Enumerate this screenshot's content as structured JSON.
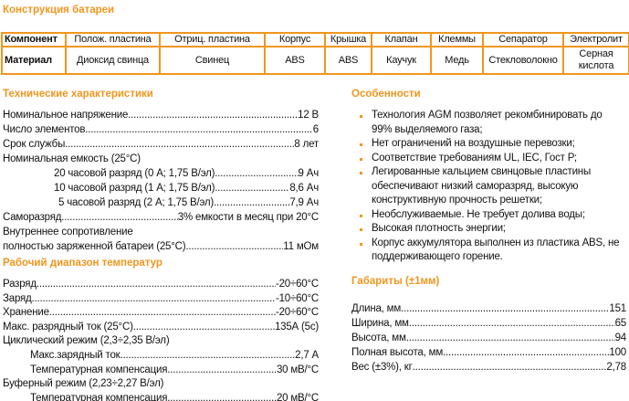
{
  "construction": {
    "title": "Конструкция батареи",
    "header": [
      "Компонент",
      "Полож. пластина",
      "Отриц. пластина",
      "Корпус",
      "Крышка",
      "Клапан",
      "Клеммы",
      "Сепаратор",
      "Электролит"
    ],
    "material": [
      "Материал",
      "Диоксид свинца",
      "Свинец",
      "ABS",
      "ABS",
      "Каучук",
      "Медь",
      "Стекловолокно",
      "Серная кислота"
    ]
  },
  "tech": {
    "title": "Технические характеристики",
    "rows": [
      {
        "label": "Номинальное напряжение",
        "value": "12 В"
      },
      {
        "label": "Число элементов",
        "value": "6"
      },
      {
        "label": "Срок службы",
        "value": "8 лет"
      },
      {
        "label": "Номинальная емкость (25°C)"
      },
      {
        "label": "20 часовой разряд  (0 А; 1,75 В/эл)",
        "value": "9 Ач"
      },
      {
        "label": "10   часовой разряд  (1 А; 1,75 В/эл)",
        "value": "8,6 Ач"
      },
      {
        "label": "5   часовой разряд  (2 А; 1,75 В/эл)",
        "value": "7,9 Ач"
      },
      {
        "label": "Саморазряд",
        "value": "3% емкости в месяц при 20°C"
      },
      {
        "label": "Внутреннее сопротивление"
      },
      {
        "label": "полностью заряженной батареи (25°C)",
        "value": "11 мОм"
      }
    ]
  },
  "temp": {
    "title": "Рабочий диапазон температур",
    "rows": [
      {
        "label": "Разряд",
        "value": "-20÷60°C"
      },
      {
        "label": "Заряд",
        "value": "-10÷60°C"
      },
      {
        "label": "Хранение",
        "value": "-20÷60°C"
      },
      {
        "label": "Макс. разрядный ток (25°C)",
        "value": "135А (5с)"
      },
      {
        "label": "Циклический режим (2,3÷2,35 В/эл)"
      },
      {
        "label": "Макс.зарядный ток",
        "value": "2,7 А"
      },
      {
        "label": "Температурная компенсация",
        "value": "30 мВ/°C"
      },
      {
        "label": "Буферный режим (2,23÷2,27 В/эл)"
      },
      {
        "label": "Температурная компенсация",
        "value": "20 мВ/°C"
      }
    ]
  },
  "features": {
    "title": "Особенности",
    "items": [
      "Технология AGM позволяет рекомбинировать до 99% выделяемого газа;",
      "Нет ограничений на воздушные перевозки;",
      "Соответствие требованиям UL, IEC, Гост Р;",
      "Легированные кальцием свинцовые пластины обеспечивают низкий саморазряд, высокую конструктивную прочность решетки;",
      "Необслуживаемые. Не требует долива воды;",
      "Высокая плотность энергии;",
      "Корпус аккумулятора выполнен из пластика ABS, не поддерживающего горение."
    ]
  },
  "dims": {
    "title": "Габариты (±1мм)",
    "rows": [
      {
        "label": "Длина, мм",
        "value": "151"
      },
      {
        "label": "Ширина, мм",
        "value": "65"
      },
      {
        "label": "Высота, мм",
        "value": "94"
      },
      {
        "label": "Полная высота, мм",
        "value": "100"
      },
      {
        "label": "Вес (±3%), кг",
        "value": "2,78"
      }
    ]
  },
  "colors": {
    "accent": "#f0961e"
  }
}
